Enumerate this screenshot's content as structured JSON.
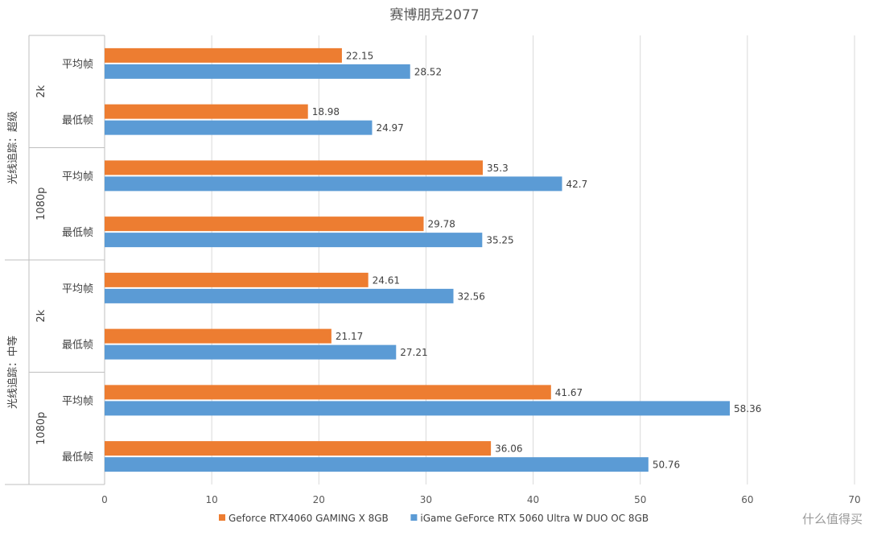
{
  "watermark": "什么值得买",
  "chart_data": {
    "type": "bar",
    "orientation": "horizontal",
    "title": "赛博朋克2077",
    "xlim": [
      0,
      70
    ],
    "x_ticks": [
      0,
      10,
      20,
      30,
      40,
      50,
      60,
      70
    ],
    "grid": true,
    "legend_position": "bottom",
    "groups": [
      {
        "label": "光线追踪：超级",
        "subgroups": [
          {
            "label": "2k",
            "categories": [
              "平均帧",
              "最低帧"
            ]
          },
          {
            "label": "1080p",
            "categories": [
              "平均帧",
              "最低帧"
            ]
          }
        ]
      },
      {
        "label": "光线追踪：中等",
        "subgroups": [
          {
            "label": "2k",
            "categories": [
              "平均帧",
              "最低帧"
            ]
          },
          {
            "label": "1080p",
            "categories": [
              "平均帧",
              "最低帧"
            ]
          }
        ]
      }
    ],
    "series": [
      {
        "name": "Geforce RTX4060 GAMING X 8GB",
        "color": "#ED7D31",
        "values": [
          22.15,
          18.98,
          35.3,
          29.78,
          24.61,
          21.17,
          41.67,
          36.06
        ]
      },
      {
        "name": "iGame GeForce RTX 5060 Ultra W DUO OC 8GB",
        "color": "#5B9BD5",
        "values": [
          28.52,
          24.97,
          42.7,
          35.25,
          32.56,
          27.21,
          58.36,
          50.76
        ]
      }
    ]
  }
}
